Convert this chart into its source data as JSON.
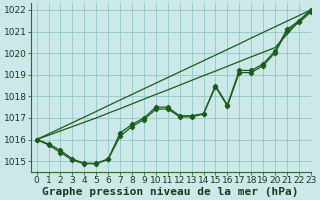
{
  "xlabel": "Graphe pression niveau de la mer (hPa)",
  "xlim": [
    -0.5,
    23
  ],
  "ylim": [
    1014.5,
    1022.3
  ],
  "yticks": [
    1015,
    1016,
    1017,
    1018,
    1019,
    1020,
    1021,
    1022
  ],
  "xticks": [
    0,
    1,
    2,
    3,
    4,
    5,
    6,
    7,
    8,
    9,
    10,
    11,
    12,
    13,
    14,
    15,
    16,
    17,
    18,
    19,
    20,
    21,
    22,
    23
  ],
  "background_color": "#cce8e8",
  "grid_color": "#99cccc",
  "line_color": "#1a5c1a",
  "straight_line": [
    1016.0,
    1016.26,
    1016.52,
    1016.78,
    1017.04,
    1017.3,
    1017.57,
    1017.83,
    1018.09,
    1018.35,
    1018.61,
    1018.87,
    1019.13,
    1019.39,
    1019.65,
    1019.91,
    1020.17,
    1020.43,
    1020.7,
    1020.96,
    1021.22,
    1021.48,
    1021.74,
    1022.0
  ],
  "straight_line2": [
    1016.0,
    1016.2,
    1016.4,
    1016.6,
    1016.8,
    1017.0,
    1017.22,
    1017.43,
    1017.65,
    1017.87,
    1018.09,
    1018.3,
    1018.52,
    1018.74,
    1018.96,
    1019.17,
    1019.39,
    1019.61,
    1019.83,
    1020.04,
    1020.26,
    1020.87,
    1021.48,
    1022.0
  ],
  "wavy_line": [
    1016.0,
    1015.8,
    1015.5,
    1015.1,
    1014.9,
    1014.9,
    1015.1,
    1016.3,
    1016.7,
    1017.0,
    1017.5,
    1017.5,
    1017.1,
    1017.1,
    1017.2,
    1018.5,
    1017.6,
    1019.2,
    1019.2,
    1019.5,
    1020.1,
    1021.1,
    1021.5,
    1022.0
  ],
  "wavy_line2": [
    1016.0,
    1015.75,
    1015.4,
    1015.05,
    1014.88,
    1014.88,
    1015.08,
    1016.15,
    1016.6,
    1016.92,
    1017.4,
    1017.42,
    1017.05,
    1017.05,
    1017.18,
    1018.45,
    1017.55,
    1019.1,
    1019.1,
    1019.42,
    1020.02,
    1021.02,
    1021.42,
    1021.9
  ],
  "xlabel_fontsize": 8,
  "tick_fontsize": 6.5
}
